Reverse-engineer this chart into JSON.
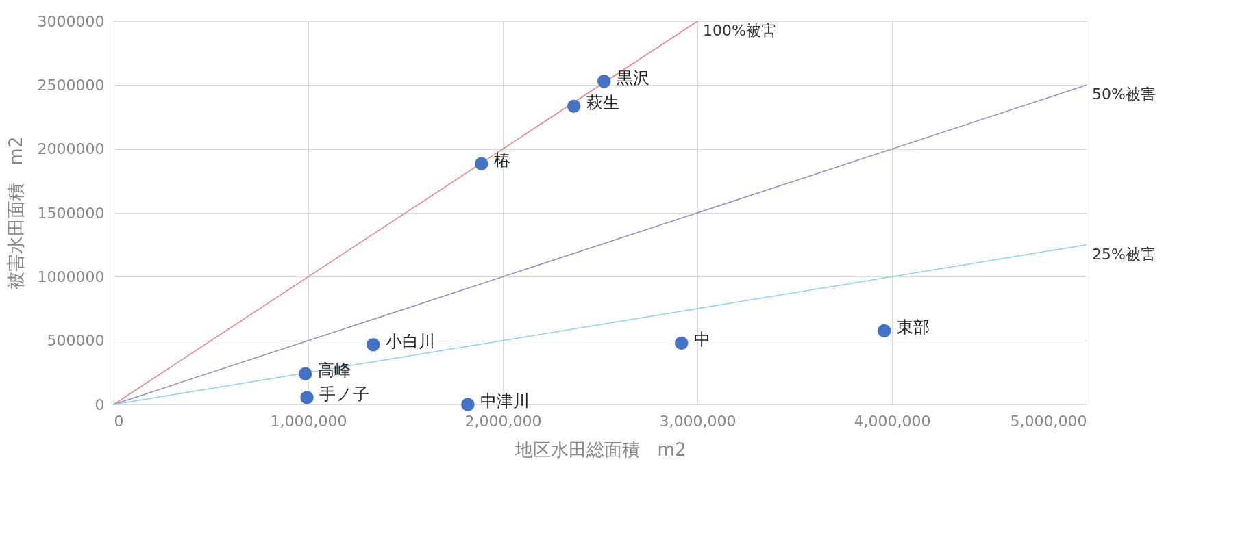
{
  "chart_data": {
    "type": "scatter",
    "xlabel": "地区水田総面積　m2",
    "ylabel": "被害水田面積　m2",
    "xlim": [
      0,
      5000000
    ],
    "ylim": [
      0,
      3000000
    ],
    "xticks": [
      0,
      {
        "value": 1000000,
        "label": "1,000,000"
      },
      {
        "value": 2000000,
        "label": "2,000,000"
      },
      {
        "value": 3000000,
        "label": "3,000,000"
      },
      {
        "value": 4000000,
        "label": "4,000,000"
      },
      {
        "value": 5000000,
        "label": "5,000,000"
      }
    ],
    "yticks": [
      0,
      500000,
      1000000,
      1500000,
      2000000,
      2500000,
      3000000
    ],
    "grid": true,
    "line_style": "solid",
    "series": [
      {
        "type": "line",
        "name": "100%被害",
        "color": "#f08080",
        "x": [
          0,
          3000000
        ],
        "values": [
          0,
          3000000
        ]
      },
      {
        "type": "line",
        "name": "50%被害",
        "color": "#8c8cc8",
        "x": [
          0,
          5000000
        ],
        "values": [
          0,
          2500000
        ]
      },
      {
        "type": "line",
        "name": "25%被害",
        "color": "#8fd0f0",
        "x": [
          0,
          5000000
        ],
        "values": [
          0,
          1250000
        ]
      },
      {
        "marker": "circle",
        "color": "#4472c4",
        "x": [
          2520000,
          2365000,
          1890000,
          1334000,
          985000,
          993000,
          1820000,
          2918000,
          3960000
        ],
        "values": [
          2530000,
          2335000,
          1885000,
          468000,
          240000,
          54000,
          0,
          480000,
          576000
        ]
      }
    ],
    "annotations": [
      {
        "text": "黒沢",
        "x": 2520000,
        "y": 2530000
      },
      {
        "text": "萩生",
        "x": 2365000,
        "y": 2335000
      },
      {
        "text": "椿",
        "x": 1890000,
        "y": 1885000
      },
      {
        "text": "小白川",
        "x": 1334000,
        "y": 468000
      },
      {
        "text": "高峰",
        "x": 985000,
        "y": 240000
      },
      {
        "text": "手ノ子",
        "x": 993000,
        "y": 54000
      },
      {
        "text": "中津川",
        "x": 1820000,
        "y": 0
      },
      {
        "text": "中",
        "x": 2918000,
        "y": 480000
      },
      {
        "text": "東部",
        "x": 3960000,
        "y": 576000
      }
    ]
  }
}
